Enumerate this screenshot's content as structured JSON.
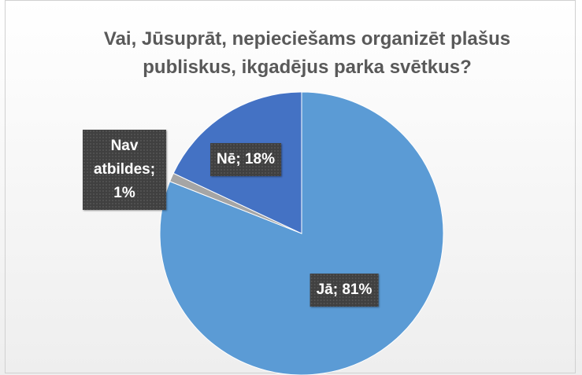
{
  "chart_data": {
    "type": "pie",
    "title": "Vai, Jūsuprāt, nepieciešams organizēt plašus publiskus, ikgadējus parka svētkus?",
    "categories": [
      "Jā",
      "Nav atbildes",
      "Nē"
    ],
    "values": [
      81,
      1,
      18
    ],
    "value_labels": [
      "Jā; 81%",
      "Nav atbildes; 1%",
      "Nē; 18%"
    ],
    "colors": [
      "#5b9bd5",
      "#a5a5a5",
      "#4472c4"
    ]
  }
}
